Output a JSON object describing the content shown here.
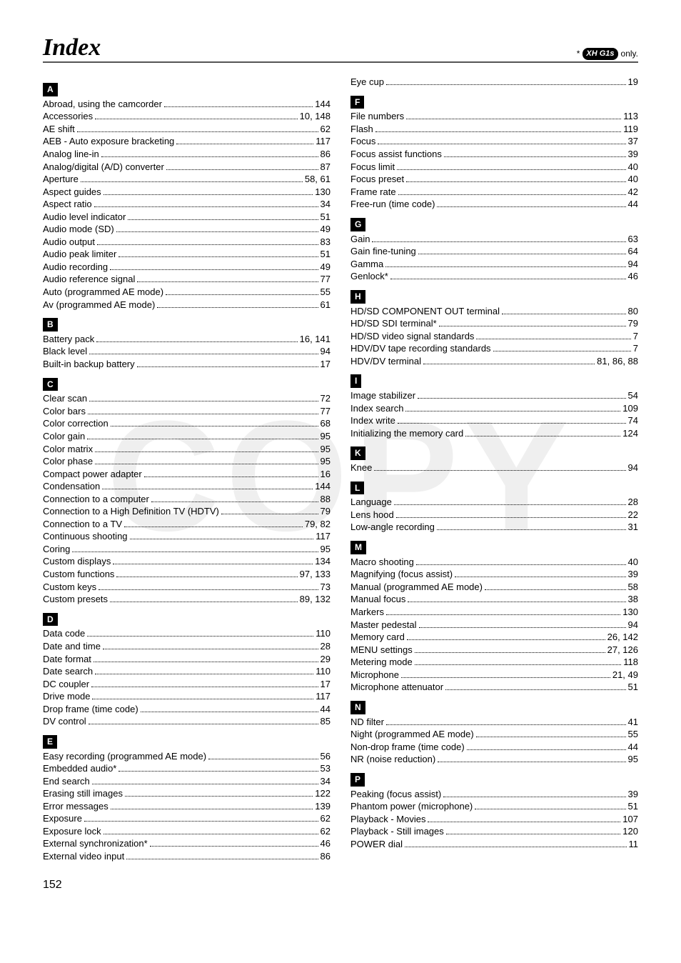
{
  "meta": {
    "title": "Index",
    "note_prefix": "*",
    "note_logo": "XH G1s",
    "note_suffix": "only.",
    "page_number": "152"
  },
  "left": {
    "sections": [
      {
        "letter": "A",
        "entries": [
          {
            "label": "Abroad, using the camcorder",
            "pages": "144"
          },
          {
            "label": "Accessories",
            "pages": "10, 148"
          },
          {
            "label": "AE shift",
            "pages": "62"
          },
          {
            "label": "AEB - Auto exposure bracketing",
            "pages": "117"
          },
          {
            "label": "Analog line-in",
            "pages": "86"
          },
          {
            "label": "Analog/digital (A/D) converter",
            "pages": "87"
          },
          {
            "label": "Aperture",
            "pages": "58, 61"
          },
          {
            "label": "Aspect guides",
            "pages": "130"
          },
          {
            "label": "Aspect ratio",
            "pages": "34"
          },
          {
            "label": "Audio level indicator",
            "pages": "51"
          },
          {
            "label": "Audio mode (SD)",
            "pages": "49"
          },
          {
            "label": "Audio output",
            "pages": "83"
          },
          {
            "label": "Audio peak limiter",
            "pages": "51"
          },
          {
            "label": "Audio recording",
            "pages": "49"
          },
          {
            "label": "Audio reference signal",
            "pages": "77"
          },
          {
            "label": "Auto (programmed AE mode)",
            "pages": "55"
          },
          {
            "label": "Av (programmed AE mode)",
            "pages": "61"
          }
        ]
      },
      {
        "letter": "B",
        "entries": [
          {
            "label": "Battery pack",
            "pages": "16, 141"
          },
          {
            "label": "Black level",
            "pages": "94"
          },
          {
            "label": "Built-in backup battery",
            "pages": "17"
          }
        ]
      },
      {
        "letter": "C",
        "entries": [
          {
            "label": "Clear scan",
            "pages": "72"
          },
          {
            "label": "Color bars",
            "pages": "77"
          },
          {
            "label": "Color correction",
            "pages": "68"
          },
          {
            "label": "Color gain",
            "pages": "95"
          },
          {
            "label": "Color matrix",
            "pages": "95"
          },
          {
            "label": "Color phase",
            "pages": "95"
          },
          {
            "label": "Compact power adapter",
            "pages": "16"
          },
          {
            "label": "Condensation",
            "pages": "144"
          },
          {
            "label": "Connection to a computer",
            "pages": "88"
          },
          {
            "label": "Connection to a High Definition TV (HDTV)",
            "pages": "79"
          },
          {
            "label": "Connection to a TV",
            "pages": "79, 82"
          },
          {
            "label": "Continuous shooting",
            "pages": "117"
          },
          {
            "label": "Coring",
            "pages": "95"
          },
          {
            "label": "Custom displays",
            "pages": "134"
          },
          {
            "label": "Custom functions",
            "pages": "97, 133"
          },
          {
            "label": "Custom keys",
            "pages": "73"
          },
          {
            "label": "Custom presets",
            "pages": "89, 132"
          }
        ]
      },
      {
        "letter": "D",
        "entries": [
          {
            "label": "Data code",
            "pages": "110"
          },
          {
            "label": "Date and time",
            "pages": "28"
          },
          {
            "label": "Date format",
            "pages": "29"
          },
          {
            "label": "Date search",
            "pages": "110"
          },
          {
            "label": "DC coupler",
            "pages": "17"
          },
          {
            "label": "Drive mode",
            "pages": "117"
          },
          {
            "label": "Drop frame (time code)",
            "pages": "44"
          },
          {
            "label": "DV control",
            "pages": "85"
          }
        ]
      },
      {
        "letter": "E",
        "entries": [
          {
            "label": "Easy recording (programmed AE mode)",
            "pages": "56"
          },
          {
            "label": "Embedded audio*",
            "pages": "53"
          },
          {
            "label": "End search",
            "pages": "34"
          },
          {
            "label": "Erasing still images",
            "pages": "122"
          },
          {
            "label": "Error messages",
            "pages": "139"
          },
          {
            "label": "Exposure",
            "pages": "62"
          },
          {
            "label": "Exposure lock",
            "pages": "62"
          },
          {
            "label": "External synchronization*",
            "pages": "46"
          },
          {
            "label": "External video input",
            "pages": "86"
          }
        ]
      }
    ]
  },
  "right": {
    "pre_entries": [
      {
        "label": "Eye cup",
        "pages": "19"
      }
    ],
    "sections": [
      {
        "letter": "F",
        "entries": [
          {
            "label": "File numbers",
            "pages": "113"
          },
          {
            "label": "Flash",
            "pages": "119"
          },
          {
            "label": "Focus",
            "pages": "37"
          },
          {
            "label": "Focus assist functions",
            "pages": "39"
          },
          {
            "label": "Focus limit",
            "pages": "40"
          },
          {
            "label": "Focus preset",
            "pages": "40"
          },
          {
            "label": "Frame rate",
            "pages": "42"
          },
          {
            "label": "Free-run (time code)",
            "pages": "44"
          }
        ]
      },
      {
        "letter": "G",
        "entries": [
          {
            "label": "Gain",
            "pages": "63"
          },
          {
            "label": "Gain fine-tuning",
            "pages": "64"
          },
          {
            "label": "Gamma",
            "pages": "94"
          },
          {
            "label": "Genlock*",
            "pages": "46"
          }
        ]
      },
      {
        "letter": "H",
        "entries": [
          {
            "label": "HD/SD COMPONENT OUT terminal",
            "pages": "80"
          },
          {
            "label": "HD/SD SDI terminal*",
            "pages": "79"
          },
          {
            "label": "HD/SD video signal standards",
            "pages": "7"
          },
          {
            "label": "HDV/DV tape recording standards",
            "pages": "7"
          },
          {
            "label": "HDV/DV terminal",
            "pages": "81, 86, 88"
          }
        ]
      },
      {
        "letter": "I",
        "entries": [
          {
            "label": "Image stabilizer",
            "pages": "54"
          },
          {
            "label": "Index search",
            "pages": "109"
          },
          {
            "label": "Index write",
            "pages": "74"
          },
          {
            "label": "Initializing the memory card",
            "pages": "124"
          }
        ]
      },
      {
        "letter": "K",
        "entries": [
          {
            "label": "Knee",
            "pages": "94"
          }
        ]
      },
      {
        "letter": "L",
        "entries": [
          {
            "label": "Language",
            "pages": "28"
          },
          {
            "label": "Lens hood",
            "pages": "22"
          },
          {
            "label": "Low-angle recording",
            "pages": "31"
          }
        ]
      },
      {
        "letter": "M",
        "entries": [
          {
            "label": "Macro shooting",
            "pages": "40"
          },
          {
            "label": "Magnifying (focus assist)",
            "pages": "39"
          },
          {
            "label": "Manual (programmed AE mode)",
            "pages": "58"
          },
          {
            "label": "Manual focus",
            "pages": "38"
          },
          {
            "label": "Markers",
            "pages": "130"
          },
          {
            "label": "Master pedestal",
            "pages": "94"
          },
          {
            "label": "Memory card",
            "pages": "26, 142"
          },
          {
            "label": "MENU settings",
            "pages": "27, 126"
          },
          {
            "label": "Metering mode",
            "pages": "118"
          },
          {
            "label": "Microphone",
            "pages": "21, 49"
          },
          {
            "label": "Microphone attenuator",
            "pages": "51"
          }
        ]
      },
      {
        "letter": "N",
        "entries": [
          {
            "label": "ND filter",
            "pages": "41"
          },
          {
            "label": "Night (programmed AE mode)",
            "pages": "55"
          },
          {
            "label": "Non-drop frame (time code)",
            "pages": "44"
          },
          {
            "label": "NR (noise reduction)",
            "pages": "95"
          }
        ]
      },
      {
        "letter": "P",
        "entries": [
          {
            "label": "Peaking (focus assist)",
            "pages": "39"
          },
          {
            "label": "Phantom power (microphone)",
            "pages": "51"
          },
          {
            "label": "Playback - Movies",
            "pages": "107"
          },
          {
            "label": "Playback - Still images",
            "pages": "120"
          },
          {
            "label": "POWER dial",
            "pages": "11"
          }
        ]
      }
    ]
  }
}
